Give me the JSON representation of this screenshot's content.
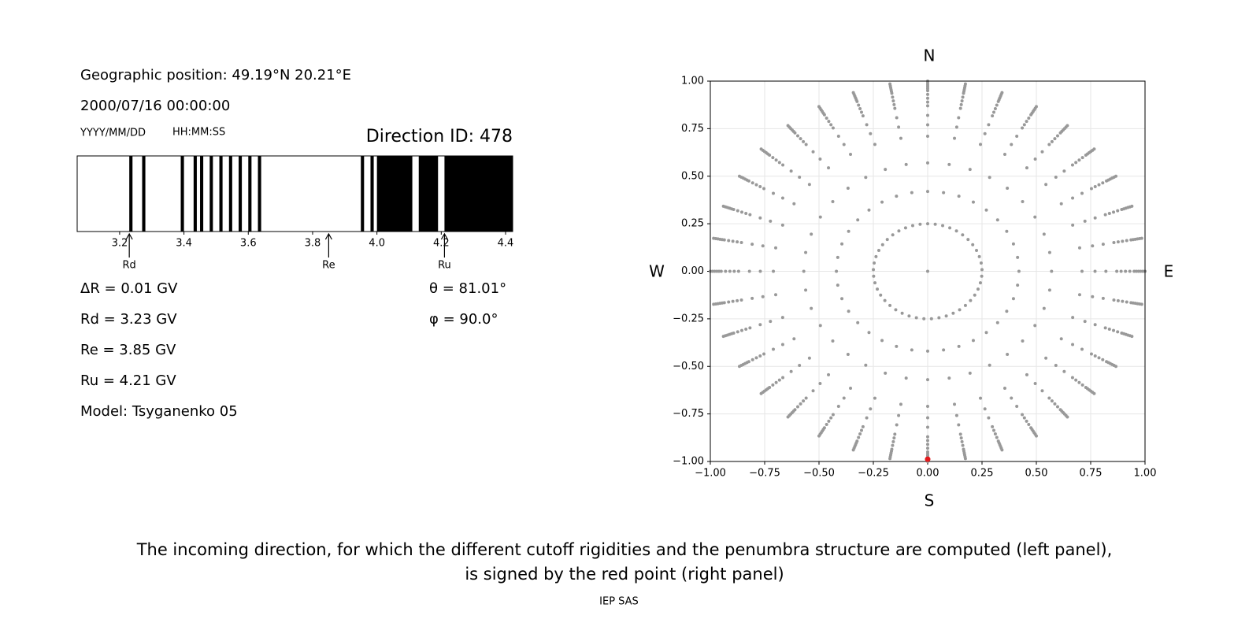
{
  "info": {
    "position": "Geographic position: 49.19°N 20.21°E",
    "datetime": "2000/07/16 00:00:00",
    "date_format": "YYYY/MM/DD",
    "time_format": "HH:MM:SS",
    "direction": "Direction ID: 478",
    "params_left": [
      "ΔR = 0.01 GV",
      "Rd = 3.23 GV",
      "Re = 3.85 GV",
      "Ru = 4.21 GV",
      "Model: Tsyganenko 05"
    ],
    "params_right": [
      "θ = 81.01°",
      "φ = 90.0°"
    ]
  },
  "chart_data": [
    {
      "type": "penumbra",
      "xlim": [
        3.068,
        4.422
      ],
      "xticks": [
        3.2,
        3.4,
        3.6,
        3.8,
        {
          "value": 4,
          "label": "4.0"
        },
        4.2,
        4.4
      ],
      "color": "#000000",
      "forbidden": [
        [
          3.23,
          3.24
        ],
        [
          3.27,
          3.28
        ],
        [
          3.39,
          3.4
        ],
        [
          3.43,
          3.44
        ],
        [
          3.45,
          3.46
        ],
        [
          3.48,
          3.49
        ],
        [
          3.51,
          3.52
        ],
        [
          3.54,
          3.55
        ],
        [
          3.57,
          3.58
        ],
        [
          3.6,
          3.61
        ],
        [
          3.63,
          3.64
        ],
        [
          3.95,
          3.96
        ],
        [
          3.98,
          3.99
        ],
        [
          4.0,
          4.11
        ],
        [
          4.13,
          4.19
        ],
        [
          4.21,
          4.422
        ]
      ],
      "markers": [
        {
          "label": "Rd",
          "value": 3.23
        },
        {
          "label": "Re",
          "value": 3.85
        },
        {
          "label": "Ru",
          "value": 4.21
        }
      ]
    },
    {
      "type": "directions",
      "xlim": [
        -1,
        1
      ],
      "ylim": [
        -1,
        1
      ],
      "xticks": [
        {
          "value": -1,
          "label": "−1.00"
        },
        {
          "value": -0.75,
          "label": "−0.75"
        },
        {
          "value": -0.5,
          "label": "−0.50"
        },
        {
          "value": -0.25,
          "label": "−0.25"
        },
        {
          "value": 0,
          "label": "0.00"
        },
        {
          "value": 0.25,
          "label": "0.25"
        },
        {
          "value": 0.5,
          "label": "0.50"
        },
        {
          "value": 0.75,
          "label": "0.75"
        },
        {
          "value": 1,
          "label": "1.00"
        }
      ],
      "yticks": [
        {
          "value": -1,
          "label": "−1.00"
        },
        {
          "value": -0.75,
          "label": "−0.75"
        },
        {
          "value": -0.5,
          "label": "−0.50"
        },
        {
          "value": -0.25,
          "label": "−0.25"
        },
        {
          "value": 0,
          "label": "0.00"
        },
        {
          "value": 0.25,
          "label": "0.25"
        },
        {
          "value": 0.5,
          "label": "0.50"
        },
        {
          "value": 0.75,
          "label": "0.75"
        },
        {
          "value": 1,
          "label": "1.00"
        }
      ],
      "grid": true,
      "labels": {
        "north": "N",
        "south": "S",
        "west": "W",
        "east": "E"
      },
      "color": "#999999",
      "center": {
        "x": 0,
        "y": 0
      },
      "inner_ring": {
        "radius": 0.25,
        "azimuths": [
          0,
          8,
          16,
          24,
          32,
          40,
          48,
          56,
          64,
          72,
          80,
          88,
          96,
          104,
          112,
          120,
          128,
          136,
          144,
          152,
          160,
          168,
          176,
          184,
          192,
          200,
          208,
          216,
          224,
          232,
          240,
          248,
          256,
          264,
          272,
          280,
          288,
          296,
          304,
          312,
          320,
          328,
          336,
          344,
          352
        ]
      },
      "spokes": {
        "azimuths": [
          0,
          10,
          20,
          30,
          40,
          50,
          60,
          70,
          80,
          90,
          100,
          110,
          120,
          130,
          140,
          150,
          160,
          170,
          180,
          190,
          200,
          210,
          220,
          230,
          240,
          250,
          260,
          270,
          280,
          290,
          300,
          310,
          320,
          330,
          340,
          350
        ],
        "radii": [
          0.42,
          0.57,
          0.71,
          0.77,
          0.82,
          0.87,
          0.89,
          0.91,
          0.93,
          0.95,
          0.96,
          0.97,
          0.98,
          0.99,
          1.0
        ]
      },
      "selected": {
        "x": 0,
        "y": -0.988,
        "color": "#e41a1c"
      }
    }
  ],
  "caption": [
    "The incoming direction, for which the different cutoff rigidities and the penumbra structure are computed (left panel),",
    "is signed by the red point (right panel)"
  ],
  "footer": "IEP SAS"
}
